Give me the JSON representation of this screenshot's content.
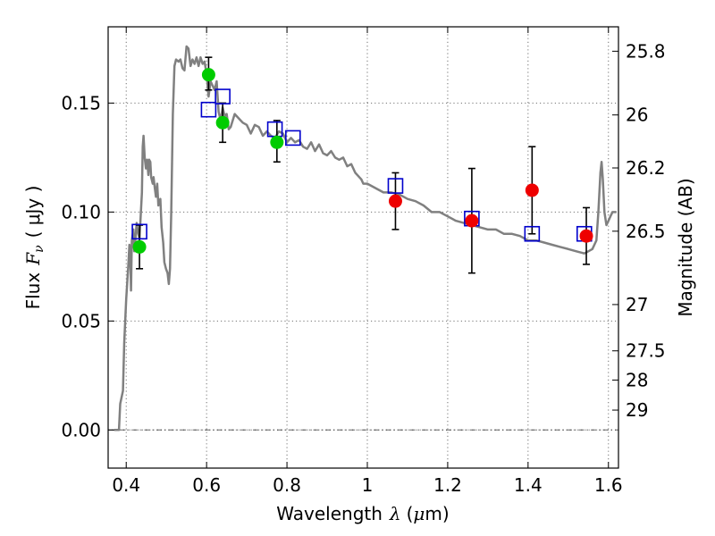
{
  "chart_data": {
    "type": "scatter",
    "xlabel": "Wavelength",
    "xlabel_symbol": "λ",
    "xlabel_unit_open": "(",
    "xlabel_unit_mu": "μ",
    "xlabel_unit_rest": "m)",
    "ylabel": "Flux",
    "ylabel_symbol": "F",
    "ylabel_symbol_sub": "ν",
    "ylabel_unit": "( μJy )",
    "y2label": "Magnitude (AB)",
    "xlim": [
      0.355,
      1.625
    ],
    "ylim": [
      -0.0175,
      0.185
    ],
    "grid": true,
    "x_ticks": [
      {
        "value": 0.4,
        "label": "0.4"
      },
      {
        "value": 0.6,
        "label": "0.6"
      },
      {
        "value": 0.8,
        "label": "0.8"
      },
      {
        "value": 1.0,
        "label": "1"
      },
      {
        "value": 1.2,
        "label": "1.2"
      },
      {
        "value": 1.4,
        "label": "1.4"
      },
      {
        "value": 1.6,
        "label": "1.6"
      }
    ],
    "y_ticks": [
      {
        "value": 0.0,
        "label": "0.00"
      },
      {
        "value": 0.05,
        "label": "0.05"
      },
      {
        "value": 0.1,
        "label": "0.10"
      },
      {
        "value": 0.15,
        "label": "0.15"
      }
    ],
    "mag_ticks": [
      {
        "value": 25.8,
        "label": "25.8"
      },
      {
        "value": 26.0,
        "label": "26"
      },
      {
        "value": 26.2,
        "label": "26.2"
      },
      {
        "value": 26.5,
        "label": "26.5"
      },
      {
        "value": 27.0,
        "label": "27"
      },
      {
        "value": 27.5,
        "label": "27.5"
      },
      {
        "value": 28.0,
        "label": "28"
      },
      {
        "value": 29.0,
        "label": "29"
      }
    ],
    "series": [
      {
        "kind": "line",
        "color": "#808080",
        "points": [
          [
            0.37,
            0.0
          ],
          [
            0.382,
            0.0
          ],
          [
            0.385,
            0.012
          ],
          [
            0.392,
            0.018
          ],
          [
            0.395,
            0.04
          ],
          [
            0.4,
            0.06
          ],
          [
            0.405,
            0.075
          ],
          [
            0.408,
            0.085
          ],
          [
            0.41,
            0.08
          ],
          [
            0.412,
            0.064
          ],
          [
            0.414,
            0.087
          ],
          [
            0.418,
            0.092
          ],
          [
            0.42,
            0.082
          ],
          [
            0.423,
            0.088
          ],
          [
            0.426,
            0.095
          ],
          [
            0.43,
            0.09
          ],
          [
            0.433,
            0.088
          ],
          [
            0.436,
            0.098
          ],
          [
            0.439,
            0.109
          ],
          [
            0.441,
            0.13
          ],
          [
            0.443,
            0.135
          ],
          [
            0.446,
            0.125
          ],
          [
            0.449,
            0.12
          ],
          [
            0.452,
            0.124
          ],
          [
            0.455,
            0.117
          ],
          [
            0.457,
            0.124
          ],
          [
            0.46,
            0.123
          ],
          [
            0.462,
            0.116
          ],
          [
            0.466,
            0.113
          ],
          [
            0.468,
            0.116
          ],
          [
            0.471,
            0.111
          ],
          [
            0.474,
            0.107
          ],
          [
            0.477,
            0.113
          ],
          [
            0.48,
            0.103
          ],
          [
            0.485,
            0.106
          ],
          [
            0.488,
            0.093
          ],
          [
            0.492,
            0.086
          ],
          [
            0.495,
            0.077
          ],
          [
            0.499,
            0.074
          ],
          [
            0.503,
            0.072
          ],
          [
            0.506,
            0.067
          ],
          [
            0.509,
            0.074
          ],
          [
            0.512,
            0.1
          ],
          [
            0.516,
            0.145
          ],
          [
            0.52,
            0.167
          ],
          [
            0.524,
            0.17
          ],
          [
            0.53,
            0.169
          ],
          [
            0.535,
            0.17
          ],
          [
            0.54,
            0.166
          ],
          [
            0.545,
            0.165
          ],
          [
            0.55,
            0.176
          ],
          [
            0.555,
            0.175
          ],
          [
            0.56,
            0.167
          ],
          [
            0.565,
            0.17
          ],
          [
            0.57,
            0.168
          ],
          [
            0.575,
            0.171
          ],
          [
            0.58,
            0.167
          ],
          [
            0.585,
            0.171
          ],
          [
            0.59,
            0.168
          ],
          [
            0.595,
            0.169
          ],
          [
            0.6,
            0.163
          ],
          [
            0.605,
            0.153
          ],
          [
            0.61,
            0.16
          ],
          [
            0.615,
            0.158
          ],
          [
            0.62,
            0.156
          ],
          [
            0.625,
            0.16
          ],
          [
            0.63,
            0.146
          ],
          [
            0.635,
            0.142
          ],
          [
            0.64,
            0.148
          ],
          [
            0.645,
            0.144
          ],
          [
            0.65,
            0.145
          ],
          [
            0.655,
            0.138
          ],
          [
            0.66,
            0.139
          ],
          [
            0.67,
            0.145
          ],
          [
            0.68,
            0.143
          ],
          [
            0.69,
            0.141
          ],
          [
            0.7,
            0.14
          ],
          [
            0.71,
            0.136
          ],
          [
            0.72,
            0.14
          ],
          [
            0.73,
            0.139
          ],
          [
            0.74,
            0.135
          ],
          [
            0.75,
            0.137
          ],
          [
            0.76,
            0.135
          ],
          [
            0.77,
            0.134
          ],
          [
            0.78,
            0.137
          ],
          [
            0.79,
            0.136
          ],
          [
            0.8,
            0.132
          ],
          [
            0.81,
            0.134
          ],
          [
            0.82,
            0.132
          ],
          [
            0.83,
            0.133
          ],
          [
            0.84,
            0.13
          ],
          [
            0.85,
            0.129
          ],
          [
            0.86,
            0.132
          ],
          [
            0.87,
            0.128
          ],
          [
            0.88,
            0.131
          ],
          [
            0.89,
            0.127
          ],
          [
            0.9,
            0.126
          ],
          [
            0.91,
            0.128
          ],
          [
            0.92,
            0.125
          ],
          [
            0.93,
            0.124
          ],
          [
            0.94,
            0.125
          ],
          [
            0.95,
            0.121
          ],
          [
            0.96,
            0.122
          ],
          [
            0.97,
            0.118
          ],
          [
            0.98,
            0.116
          ],
          [
            0.985,
            0.115
          ],
          [
            0.99,
            0.113
          ],
          [
            1.0,
            0.113
          ],
          [
            1.02,
            0.111
          ],
          [
            1.04,
            0.109
          ],
          [
            1.06,
            0.109
          ],
          [
            1.08,
            0.108
          ],
          [
            1.1,
            0.106
          ],
          [
            1.12,
            0.105
          ],
          [
            1.14,
            0.103
          ],
          [
            1.16,
            0.1
          ],
          [
            1.18,
            0.1
          ],
          [
            1.2,
            0.098
          ],
          [
            1.22,
            0.096
          ],
          [
            1.24,
            0.095
          ],
          [
            1.26,
            0.094
          ],
          [
            1.28,
            0.093
          ],
          [
            1.3,
            0.092
          ],
          [
            1.32,
            0.092
          ],
          [
            1.34,
            0.09
          ],
          [
            1.36,
            0.09
          ],
          [
            1.38,
            0.089
          ],
          [
            1.4,
            0.087
          ],
          [
            1.42,
            0.087
          ],
          [
            1.44,
            0.086
          ],
          [
            1.46,
            0.085
          ],
          [
            1.48,
            0.084
          ],
          [
            1.5,
            0.083
          ],
          [
            1.52,
            0.082
          ],
          [
            1.54,
            0.081
          ],
          [
            1.55,
            0.082
          ],
          [
            1.56,
            0.083
          ],
          [
            1.57,
            0.087
          ],
          [
            1.575,
            0.1
          ],
          [
            1.58,
            0.118
          ],
          [
            1.583,
            0.123
          ],
          [
            1.586,
            0.115
          ],
          [
            1.59,
            0.1
          ],
          [
            1.595,
            0.094
          ],
          [
            1.6,
            0.096
          ],
          [
            1.605,
            0.098
          ],
          [
            1.61,
            0.1
          ],
          [
            1.62,
            0.1
          ]
        ]
      },
      {
        "kind": "squares",
        "color": "#0000cc",
        "points": [
          [
            0.433,
            0.091
          ],
          [
            0.605,
            0.147
          ],
          [
            0.64,
            0.153
          ],
          [
            0.77,
            0.138
          ],
          [
            0.815,
            0.134
          ],
          [
            1.07,
            0.112
          ],
          [
            1.26,
            0.097
          ],
          [
            1.41,
            0.09
          ],
          [
            1.54,
            0.09
          ]
        ]
      },
      {
        "kind": "circles",
        "color": "#00cc00",
        "points": [
          {
            "x": 0.433,
            "y": 0.084,
            "lo": 0.074,
            "hi": 0.094
          },
          {
            "x": 0.605,
            "y": 0.163,
            "lo": 0.156,
            "hi": 0.171
          },
          {
            "x": 0.64,
            "y": 0.141,
            "lo": 0.132,
            "hi": 0.15
          },
          {
            "x": 0.775,
            "y": 0.132,
            "lo": 0.123,
            "hi": 0.142
          }
        ]
      },
      {
        "kind": "circles",
        "color": "#ee0000",
        "points": [
          {
            "x": 1.07,
            "y": 0.105,
            "lo": 0.092,
            "hi": 0.118
          },
          {
            "x": 1.26,
            "y": 0.096,
            "lo": 0.072,
            "hi": 0.12
          },
          {
            "x": 1.41,
            "y": 0.11,
            "lo": 0.09,
            "hi": 0.13
          },
          {
            "x": 1.545,
            "y": 0.089,
            "lo": 0.076,
            "hi": 0.102
          }
        ]
      }
    ]
  }
}
